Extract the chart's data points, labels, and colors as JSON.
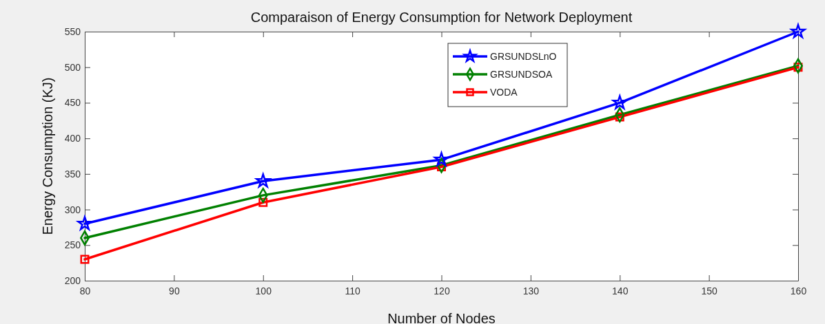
{
  "chart_data": {
    "type": "line",
    "title": "Comparaison of Energy Consumption for Network Deployment",
    "xlabel": "Number of Nodes",
    "ylabel": "Energy Consumption (KJ)",
    "x": [
      80,
      100,
      120,
      140,
      160
    ],
    "series": [
      {
        "name": "GRSUNDSLnO",
        "color": "#0000ff",
        "marker": "star",
        "values": [
          280,
          340,
          370,
          450,
          550
        ]
      },
      {
        "name": "GRSUNDSOA",
        "color": "#008000",
        "marker": "diamond",
        "values": [
          260,
          320,
          362,
          433,
          502
        ]
      },
      {
        "name": "VODA",
        "color": "#ff0000",
        "marker": "square",
        "values": [
          230,
          310,
          360,
          430,
          500
        ]
      }
    ],
    "xlim": [
      80,
      160
    ],
    "xticks": [
      80,
      90,
      100,
      110,
      120,
      130,
      140,
      150,
      160
    ],
    "ylim": [
      200,
      550
    ],
    "yticks": [
      200,
      250,
      300,
      350,
      400,
      450,
      500,
      550
    ],
    "grid": false,
    "legend": "top",
    "line_style": "solid"
  }
}
